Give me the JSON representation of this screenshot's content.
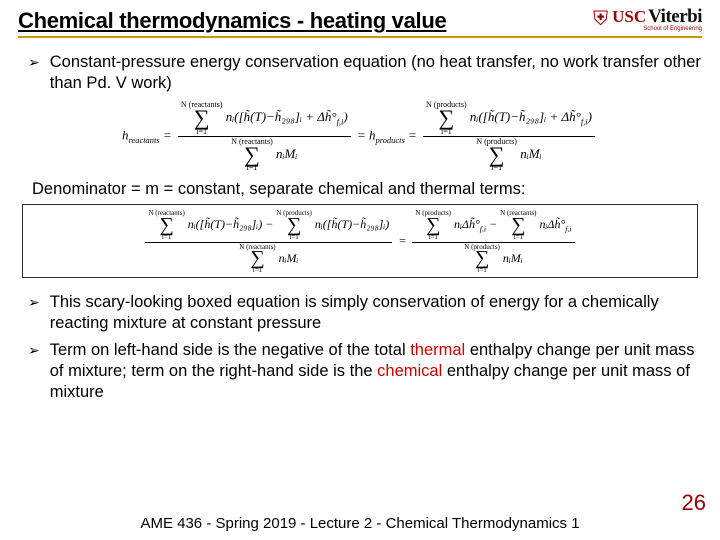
{
  "header": {
    "title": "Chemical thermodynamics - heating value",
    "logo_usc": "USC",
    "logo_viterbi": "Viterbi",
    "logo_sub": "School of Engineering"
  },
  "bullets": {
    "b1": "Constant-pressure energy conservation equation (no heat transfer, no work transfer other than Pd. V work)",
    "mid": "Denominator = m = constant, separate chemical and thermal terms:",
    "b2": "This scary-looking boxed equation is simply conservation of energy for a chemically reacting mixture at constant pressure",
    "b3a": "Term on left-hand side is the negative of the total ",
    "b3_thermal": "thermal",
    "b3b": " enthalpy change per unit mass of mixture; term on the right-hand side is the ",
    "b3_chemical": "chemical",
    "b3c": " enthalpy change per unit mass of mixture"
  },
  "eq1": {
    "h_reactants": "h",
    "sub_reactants": "reactants",
    "eq": " = ",
    "n_react": "N (reactants)",
    "i1": "i=1",
    "term1": "nᵢ([h̃(T)−h̃₂₉₈]ᵢ + Δh̃°",
    "fi": "f,i",
    "close": ")",
    "nimi": "nᵢMᵢ",
    "h_products": "h",
    "sub_products": "products",
    "n_prod": "N (products)"
  },
  "eq2": {
    "n_react": "N (reactants)",
    "n_prod": "N (products)",
    "i1": "i=1",
    "term_lhs1": "nᵢ([h̃(T)−h̃₂₉₈]ᵢ)",
    "minus": " − ",
    "term_lhs2": "nᵢ([h̃(T)−h̃₂₉₈]ᵢ)",
    "nimi": "nᵢMᵢ",
    "eq": " = ",
    "term_rhs": "nᵢΔh̃°",
    "fi": "f,i"
  },
  "footer": {
    "text": "AME 436 - Spring 2019 - Lecture 2 - Chemical Thermodynamics 1",
    "page": "26"
  },
  "colors": {
    "accent_red": "#990000",
    "accent_gold": "#c79a00",
    "thermal_red": "#cc0000"
  }
}
